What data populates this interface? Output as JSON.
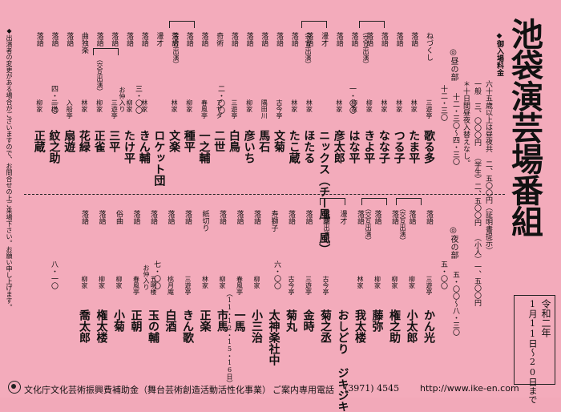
{
  "title": "池袋演芸場番組",
  "date": {
    "era": "令和二年",
    "range": "1月11日〜20日まで"
  },
  "admission": {
    "head": "◆御入場料金",
    "lines": [
      "六十五歳以上は昼夜共 二、五〇〇円（証明書提示）",
      "一般 三、〇〇〇円 （学生）二、五〇〇円 （小人）一、五〇〇円"
    ],
    "note": "＊十日間昼夜入替えなし。"
  },
  "sections": {
    "day": "◎昼の部",
    "night": "◎夜の部"
  },
  "day_times": [
    "十二・三〇〜四・三〇",
    "十二・三〇",
    "一・〇〇",
    "二・〇〇",
    "三・〇〇",
    "四・一〇"
  ],
  "night_times": [
    "五・〇〇〜八・三〇",
    "五・〇〇",
    "六・〇〇",
    "七・〇〇",
    "八・一〇"
  ],
  "day": [
    {
      "genre": "ねづくし",
      "label": "三遊亭",
      "name": "歌る多"
    },
    {
      "genre": "落語",
      "label": "林家",
      "name": "たま平"
    },
    {
      "genre": "落語",
      "label": "林家",
      "name": "つる子"
    },
    {
      "genre": "落語",
      "label": "林家",
      "name": "なな子"
    },
    {
      "genre": "落語",
      "label": "柳家",
      "name": "きよ平"
    },
    {
      "genre": "落語",
      "label": "柳家",
      "name": "はな平"
    },
    {
      "genre": "落語",
      "label": "林家",
      "name": "彦太郎"
    },
    {
      "genre": "漫才",
      "label": "",
      "name": "ニックス（チー風 風）"
    },
    {
      "genre": "落語",
      "label": "林家",
      "name": "ほたる"
    },
    {
      "genre": "落語",
      "label": "林家",
      "name": "たこ蔵"
    },
    {
      "genre": "落語",
      "label": "古今亭",
      "name": "文菊"
    },
    {
      "genre": "落語",
      "label": "隅田川",
      "name": "馬石"
    },
    {
      "genre": "落語",
      "label": "柳家",
      "name": "彦いち"
    },
    {
      "genre": "落語",
      "label": "三遊亭",
      "name": "白鳥"
    },
    {
      "genre": "奇術",
      "label": "アサダ",
      "name": "二世"
    },
    {
      "genre": "落語",
      "label": "春風亭",
      "name": "一之輔"
    },
    {
      "genre": "落語",
      "label": "柳家",
      "name": "種平"
    },
    {
      "genre": "落語",
      "label": "林家",
      "name": "文楽"
    },
    {
      "genre": "漫才",
      "label": "",
      "name": "ロケット団"
    },
    {
      "genre": "落語",
      "label": "林家",
      "name": "きん輔"
    },
    {
      "genre": "落語",
      "label": "柳家",
      "name": "たけ平"
    },
    {
      "genre": "落語",
      "label": "三遊亭",
      "name": "三平"
    },
    {
      "genre": "落語",
      "label": "柳家",
      "name": "正雀"
    },
    {
      "genre": "曲独楽",
      "label": "林家",
      "name": "花緑"
    },
    {
      "genre": "落語",
      "label": "入船亭",
      "name": "扇遊"
    },
    {
      "genre": "落語",
      "label": "三増",
      "name": "紋之助"
    },
    {
      "genre": "落語",
      "label": "柳家",
      "name": "正蔵"
    }
  ],
  "night": [
    {
      "genre": "落語",
      "label": "三遊亭",
      "name": "かん光"
    },
    {
      "genre": "落語",
      "label": "柳家",
      "name": "小太郎"
    },
    {
      "genre": "落語",
      "label": "柳家",
      "name": "権之助"
    },
    {
      "genre": "落語",
      "label": "柳家",
      "name": "藤弥"
    },
    {
      "genre": "落語",
      "label": "林家",
      "name": "我太楼"
    },
    {
      "genre": "漫才",
      "label": "",
      "name": "おしどり ジキジキ"
    },
    {
      "genre": "落語",
      "label": "古今亭",
      "name": "菊之丞"
    },
    {
      "genre": "落語",
      "label": "三遊亭",
      "name": "金時"
    },
    {
      "genre": "落語",
      "label": "古今亭",
      "name": "菊丸"
    },
    {
      "genre": "寿獅子",
      "label": "",
      "name": "太神楽社中"
    },
    {
      "genre": "落語",
      "label": "柳家",
      "name": "小三治"
    },
    {
      "genre": "落語",
      "label": "春風亭",
      "name": "一馬"
    },
    {
      "genre": "落語",
      "label": "柳家",
      "name": "市馬"
    },
    {
      "genre": "紙切り",
      "label": "林家",
      "name": "正楽"
    },
    {
      "genre": "落語",
      "label": "三遊亭",
      "name": "きん歌"
    },
    {
      "genre": "落語",
      "label": "桃月庵",
      "name": "白酒"
    },
    {
      "genre": "落語",
      "label": "五明楼",
      "name": "玉の輔"
    },
    {
      "genre": "落語",
      "label": "春風亭",
      "name": "正朝"
    },
    {
      "genre": "俗曲",
      "label": "柳家",
      "name": "小菊"
    },
    {
      "genre": "落語",
      "label": "柳家",
      "name": "権太楼"
    },
    {
      "genre": "落語",
      "label": "柳家",
      "name": "喬太郎"
    }
  ],
  "labels": {
    "kotai": "（交互出演）",
    "nakairi": "お仲入り",
    "dates_note": "（11・12・15・16日）"
  },
  "side_note": "◆出演者の変更がある場合がございますので、お問合せの上ご来場下さい。お願い申し上げます。",
  "footer": {
    "sponsor": "文化庁文化芸術振興費補助金（舞台芸術創造活動活性化事業）",
    "phone_label": "ご案内専用電話",
    "phone": "(3971) 4545",
    "url": "http://www.ike-en.com"
  }
}
